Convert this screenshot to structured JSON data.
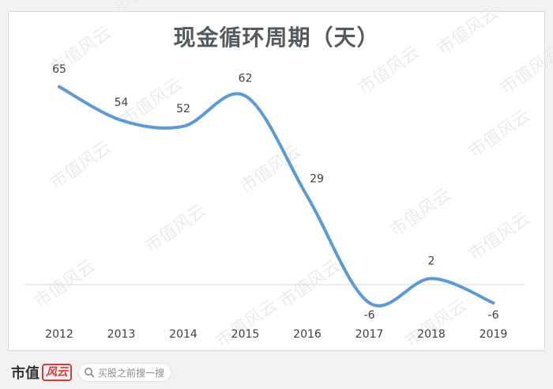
{
  "chart_data": {
    "type": "line",
    "title": "现金循环周期（天）",
    "categories": [
      "2012",
      "2013",
      "2014",
      "2015",
      "2016",
      "2017",
      "2018",
      "2019"
    ],
    "series": [
      {
        "values": [
          65,
          54,
          52,
          62,
          29,
          -6,
          2,
          -6
        ]
      }
    ],
    "data_labels": [
      "65",
      "54",
      "52",
      "62",
      "29",
      "-6",
      "2",
      "-6"
    ],
    "smooth": true,
    "grid": false,
    "legend": "none",
    "line_color": "#5b9bd5",
    "zero_line_color": "#d9d9d9"
  },
  "watermark": {
    "text": "市值风云",
    "color": "#ebebeb"
  },
  "footer": {
    "brand": "市值",
    "brand_stamp": "风云",
    "search_text": "买股之前搜一搜"
  }
}
